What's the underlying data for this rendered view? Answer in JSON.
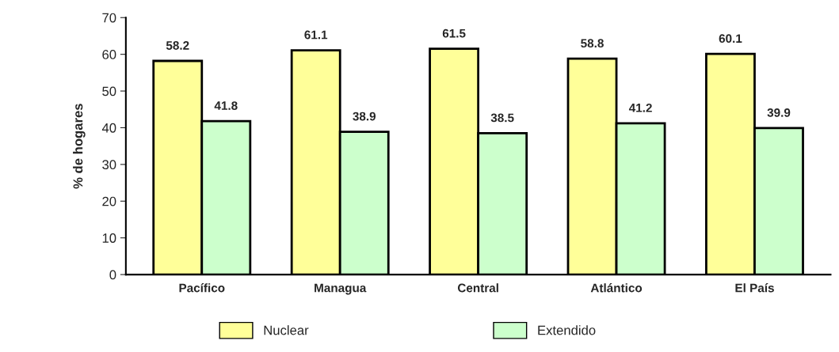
{
  "chart_data": {
    "type": "bar",
    "ylabel": "% de hogares",
    "categories": [
      "Pacífico",
      "Managua",
      "Central",
      "Atlántico",
      "El País"
    ],
    "series": [
      {
        "name": "Nuclear",
        "color": "#ffff99",
        "values": [
          58.2,
          61.1,
          61.5,
          58.8,
          60.1
        ]
      },
      {
        "name": "Extendido",
        "color": "#ccffcc",
        "values": [
          41.8,
          38.9,
          38.5,
          41.2,
          39.9
        ]
      }
    ],
    "ylim": [
      0,
      70
    ],
    "yticks": [
      0,
      10,
      20,
      30,
      40,
      50,
      60,
      70
    ],
    "data_labels": true,
    "grid": false,
    "legend": "bottom"
  }
}
